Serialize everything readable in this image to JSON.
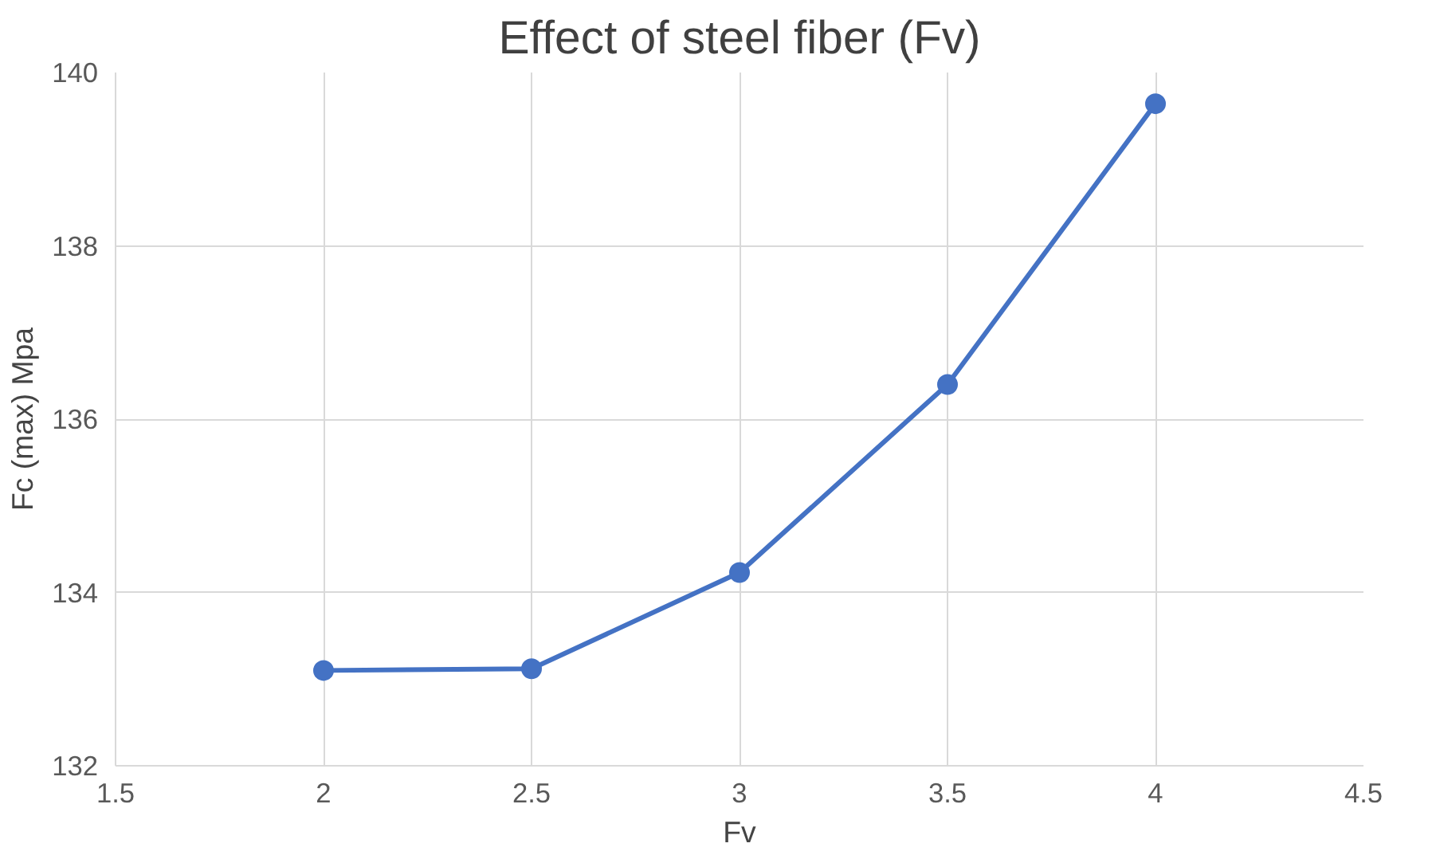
{
  "chart_data": {
    "type": "line",
    "title": "Effect of steel fiber (Fv)",
    "xlabel": "Fv",
    "ylabel": "Fc (max) Mpa",
    "x": [
      2,
      2.5,
      3,
      3.5,
      4
    ],
    "series": [
      {
        "color": "#4472c4",
        "values": [
          133.1,
          133.12,
          134.23,
          136.4,
          139.64
        ]
      }
    ],
    "xlim": [
      1.5,
      4.5
    ],
    "xticks": [
      1.5,
      2,
      2.5,
      3,
      3.5,
      4,
      4.5
    ],
    "ylim": [
      132,
      140
    ],
    "yticks": [
      132,
      134,
      136,
      138,
      140
    ],
    "grid": true,
    "marker": "circle",
    "line_style": "solid"
  }
}
